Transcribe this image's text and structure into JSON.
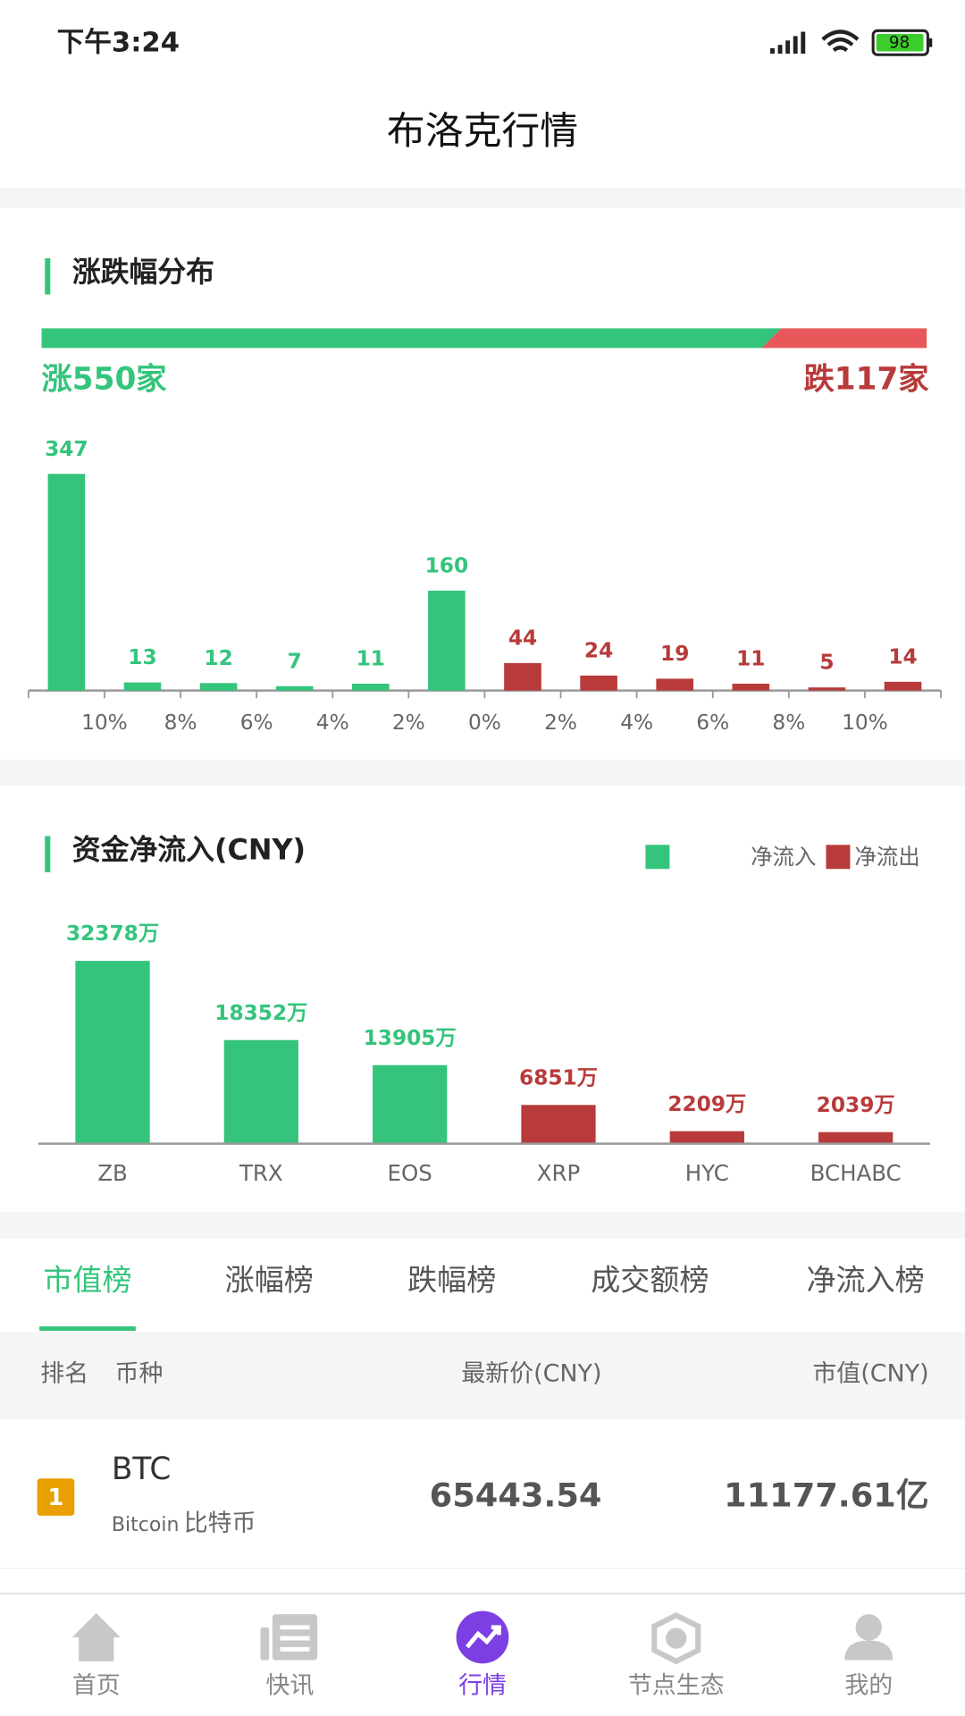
{
  "status_bar": {
    "time": "下午3:24",
    "battery": "98"
  },
  "header": {
    "title": "布洛克行情"
  },
  "distribution": {
    "type": "bar",
    "title": "涨跌幅分布",
    "rise_label": "涨550家",
    "fall_label": "跌117家",
    "rise_count": 550,
    "fall_count": 117,
    "values": [
      347,
      13,
      12,
      7,
      11,
      160,
      44,
      24,
      19,
      11,
      5,
      14
    ],
    "colors": [
      "#34c47c",
      "#34c47c",
      "#34c47c",
      "#34c47c",
      "#34c47c",
      "#34c47c",
      "#b83a3a",
      "#b83a3a",
      "#b83a3a",
      "#b83a3a",
      "#b83a3a",
      "#b83a3a"
    ],
    "tick_labels": [
      "10%",
      "8%",
      "6%",
      "4%",
      "2%",
      "0%",
      "2%",
      "4%",
      "6%",
      "8%",
      "10%"
    ]
  },
  "flow": {
    "type": "bar",
    "title": "资金净流入(CNY)",
    "legend": [
      {
        "name": "净流入",
        "color": "#34c47c"
      },
      {
        "name": "净流出",
        "color": "#b83a3a"
      }
    ],
    "categories": [
      "ZB",
      "TRX",
      "EOS",
      "XRP",
      "HYC",
      "BCHABC"
    ],
    "values": [
      32378,
      18352,
      13905,
      6851,
      2209,
      2039
    ],
    "value_labels": [
      "32378万",
      "18352万",
      "13905万",
      "6851万",
      "2209万",
      "2039万"
    ],
    "colors": [
      "#34c47c",
      "#34c47c",
      "#34c47c",
      "#b83a3a",
      "#b83a3a",
      "#b83a3a"
    ]
  },
  "tabs": {
    "items": [
      "市值榜",
      "涨幅榜",
      "跌幅榜",
      "成交额榜",
      "净流入榜"
    ],
    "active": 0
  },
  "table": {
    "columns": [
      "排名",
      "币种",
      "最新价(CNY)",
      "市值(CNY)"
    ],
    "rows": [
      {
        "rank": "1",
        "symbol": "BTC",
        "name_en": "Bitcoin",
        "name_cn": "比特币",
        "price": "65443.54",
        "market_cap": "11177.61亿"
      }
    ]
  },
  "nav": {
    "items": [
      "首页",
      "快讯",
      "行情",
      "节点生态",
      "我的"
    ],
    "active": 2
  }
}
